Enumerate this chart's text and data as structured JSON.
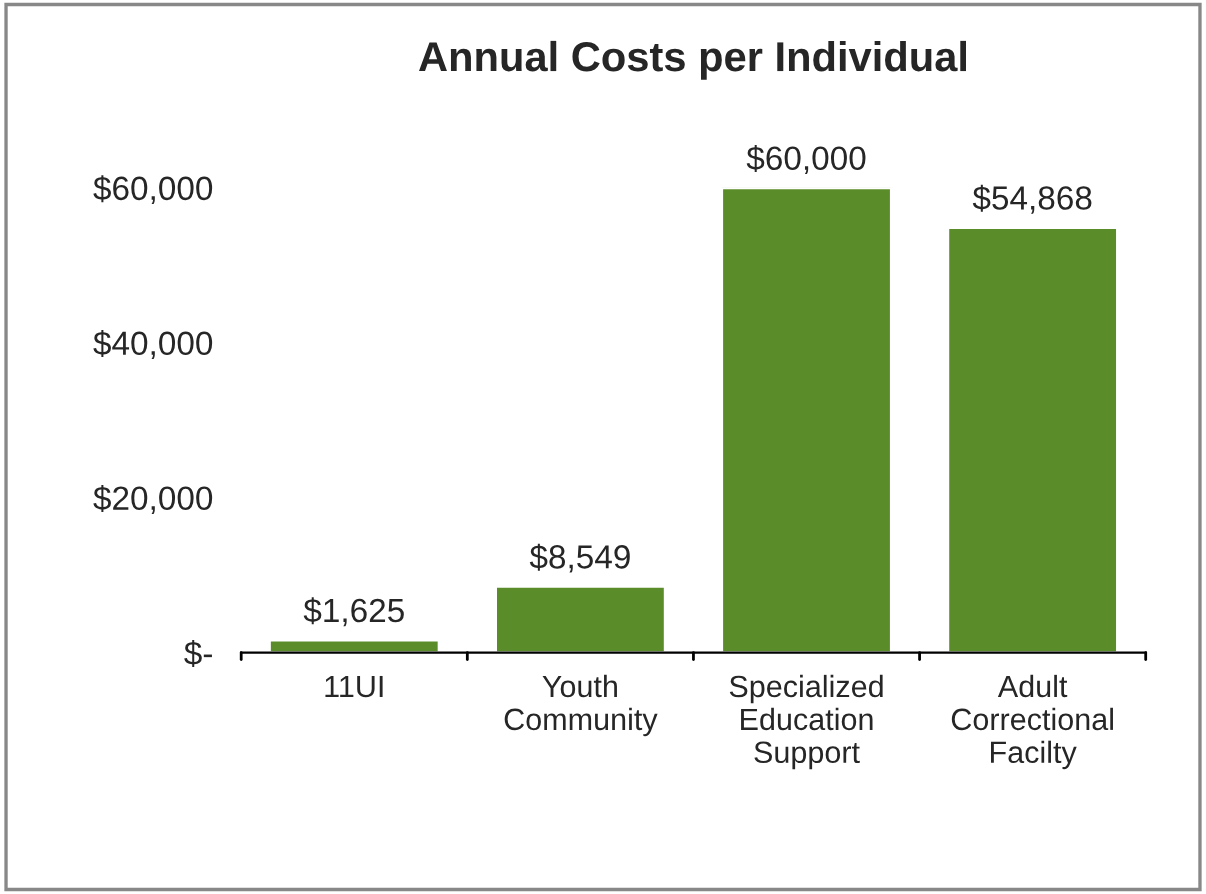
{
  "chart_data": {
    "type": "bar",
    "title": "Annual Costs per Individual",
    "categories": [
      "11UI",
      "Youth\nCommunity",
      "Specialized\nEducation\nSupport",
      "Adult\nCorrectional\nFacilty"
    ],
    "values": [
      1625,
      8549,
      60000,
      54868
    ],
    "value_labels": [
      "$1,625",
      "$8,549",
      "$60,000",
      "$54,868"
    ],
    "color": "#5b8c2a",
    "ylim": [
      0,
      60000
    ],
    "yticks": [
      {
        "value": 0,
        "label": "$-"
      },
      {
        "value": 20000,
        "label": "$20,000"
      },
      {
        "value": 40000,
        "label": "$40,000"
      },
      {
        "value": 60000,
        "label": "$60,000"
      }
    ],
    "grid": false,
    "legend": false
  }
}
